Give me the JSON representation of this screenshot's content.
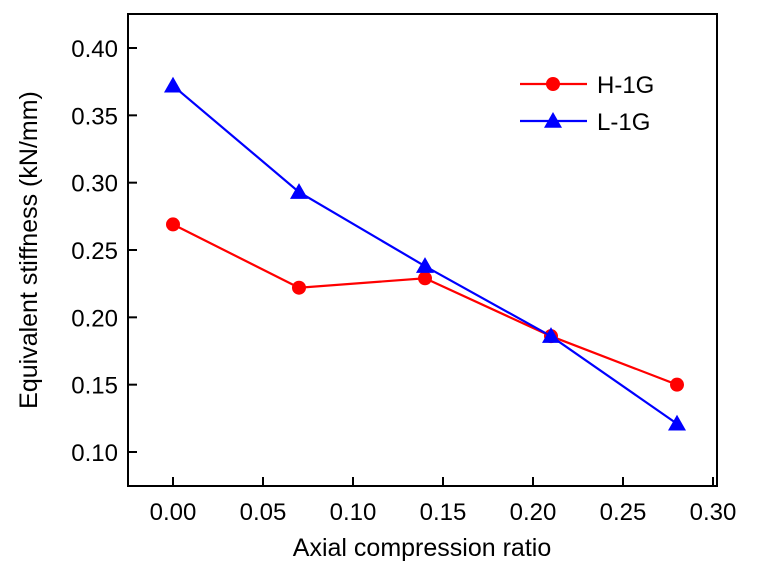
{
  "chart_data": {
    "type": "line",
    "title": "",
    "xlabel": "Axial compression ratio",
    "ylabel": "Equivalent stiffness (kN/mm)",
    "xlim": [
      -0.025,
      0.3
    ],
    "ylim": [
      0.075,
      0.425
    ],
    "xticks": [
      0.0,
      0.05,
      0.1,
      0.15,
      0.2,
      0.25,
      0.3
    ],
    "xtick_labels": [
      "0.00",
      "0.05",
      "0.10",
      "0.15",
      "0.20",
      "0.25",
      "0.30"
    ],
    "yticks": [
      0.1,
      0.15,
      0.2,
      0.25,
      0.3,
      0.35,
      0.4
    ],
    "ytick_labels": [
      "0.10",
      "0.15",
      "0.20",
      "0.25",
      "0.30",
      "0.35",
      "0.40"
    ],
    "grid": false,
    "legend_position": "top-right",
    "x": [
      0.0,
      0.07,
      0.14,
      0.21,
      0.28
    ],
    "series": [
      {
        "name": "H-1G",
        "color": "#ff0000",
        "marker": "circle",
        "values": [
          0.269,
          0.222,
          0.229,
          0.186,
          0.15
        ]
      },
      {
        "name": "L-1G",
        "color": "#0000ff",
        "marker": "triangle",
        "values": [
          0.372,
          0.293,
          0.238,
          0.186,
          0.121
        ]
      }
    ]
  }
}
